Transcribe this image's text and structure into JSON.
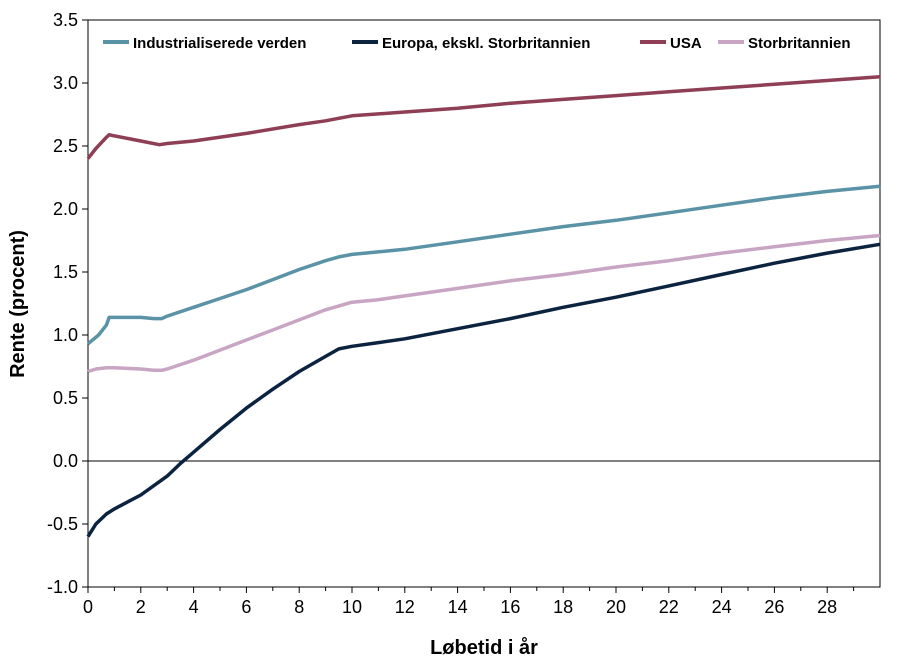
{
  "chart_data": {
    "type": "line",
    "xlabel": "Løbetid i år",
    "ylabel": "Rente (procent)",
    "xlim": [
      0,
      30
    ],
    "ylim": [
      -1.0,
      3.5
    ],
    "xticks": [
      "0",
      "2",
      "4",
      "6",
      "8",
      "10",
      "12",
      "14",
      "16",
      "18",
      "20",
      "22",
      "24",
      "26",
      "28"
    ],
    "yticks": [
      "-1.0",
      "-0.5",
      "0.0",
      "0.5",
      "1.0",
      "1.5",
      "2.0",
      "2.5",
      "3.0",
      "3.5"
    ],
    "grid": false,
    "legend_position": "top",
    "series": [
      {
        "name": "Industrialiserede verden",
        "color": "#5B93A6",
        "points": [
          [
            0,
            0.93
          ],
          [
            0.4,
            1.0
          ],
          [
            0.7,
            1.08
          ],
          [
            0.8,
            1.14
          ],
          [
            1,
            1.14
          ],
          [
            2,
            1.14
          ],
          [
            2.5,
            1.13
          ],
          [
            2.8,
            1.13
          ],
          [
            3,
            1.15
          ],
          [
            4,
            1.22
          ],
          [
            5,
            1.29
          ],
          [
            6,
            1.36
          ],
          [
            7,
            1.44
          ],
          [
            8,
            1.52
          ],
          [
            9,
            1.59
          ],
          [
            9.5,
            1.62
          ],
          [
            10,
            1.64
          ],
          [
            12,
            1.68
          ],
          [
            14,
            1.74
          ],
          [
            16,
            1.8
          ],
          [
            18,
            1.86
          ],
          [
            20,
            1.91
          ],
          [
            22,
            1.97
          ],
          [
            24,
            2.03
          ],
          [
            26,
            2.09
          ],
          [
            28,
            2.14
          ],
          [
            30,
            2.18
          ]
        ]
      },
      {
        "name": "Europa, ekskl. Storbritannien",
        "color": "#0C2340",
        "points": [
          [
            0,
            -0.6
          ],
          [
            0.3,
            -0.5
          ],
          [
            0.7,
            -0.42
          ],
          [
            1,
            -0.38
          ],
          [
            2,
            -0.27
          ],
          [
            3,
            -0.12
          ],
          [
            3.5,
            -0.02
          ],
          [
            4,
            0.07
          ],
          [
            5,
            0.25
          ],
          [
            6,
            0.42
          ],
          [
            7,
            0.57
          ],
          [
            8,
            0.71
          ],
          [
            9,
            0.83
          ],
          [
            9.5,
            0.89
          ],
          [
            10,
            0.91
          ],
          [
            11,
            0.94
          ],
          [
            12,
            0.97
          ],
          [
            14,
            1.05
          ],
          [
            16,
            1.13
          ],
          [
            18,
            1.22
          ],
          [
            20,
            1.3
          ],
          [
            22,
            1.39
          ],
          [
            24,
            1.48
          ],
          [
            26,
            1.57
          ],
          [
            28,
            1.65
          ],
          [
            30,
            1.72
          ]
        ]
      },
      {
        "name": "USA",
        "color": "#8E3E55",
        "points": [
          [
            0,
            2.4
          ],
          [
            0.3,
            2.48
          ],
          [
            0.7,
            2.57
          ],
          [
            0.8,
            2.59
          ],
          [
            1,
            2.58
          ],
          [
            2,
            2.54
          ],
          [
            2.7,
            2.51
          ],
          [
            3,
            2.52
          ],
          [
            4,
            2.54
          ],
          [
            6,
            2.6
          ],
          [
            8,
            2.67
          ],
          [
            9,
            2.7
          ],
          [
            10,
            2.74
          ],
          [
            12,
            2.77
          ],
          [
            14,
            2.8
          ],
          [
            16,
            2.84
          ],
          [
            18,
            2.87
          ],
          [
            20,
            2.9
          ],
          [
            22,
            2.93
          ],
          [
            24,
            2.96
          ],
          [
            26,
            2.99
          ],
          [
            28,
            3.02
          ],
          [
            30,
            3.05
          ]
        ]
      },
      {
        "name": "Storbritannien",
        "color": "#C7A5C3",
        "points": [
          [
            0,
            0.71
          ],
          [
            0.3,
            0.73
          ],
          [
            0.7,
            0.74
          ],
          [
            1,
            0.74
          ],
          [
            2,
            0.73
          ],
          [
            2.5,
            0.72
          ],
          [
            2.8,
            0.72
          ],
          [
            3,
            0.73
          ],
          [
            4,
            0.8
          ],
          [
            5,
            0.88
          ],
          [
            6,
            0.96
          ],
          [
            7,
            1.04
          ],
          [
            8,
            1.12
          ],
          [
            9,
            1.2
          ],
          [
            10,
            1.26
          ],
          [
            11,
            1.28
          ],
          [
            12,
            1.31
          ],
          [
            14,
            1.37
          ],
          [
            16,
            1.43
          ],
          [
            18,
            1.48
          ],
          [
            20,
            1.54
          ],
          [
            22,
            1.59
          ],
          [
            24,
            1.65
          ],
          [
            26,
            1.7
          ],
          [
            28,
            1.75
          ],
          [
            30,
            1.79
          ]
        ]
      }
    ]
  }
}
